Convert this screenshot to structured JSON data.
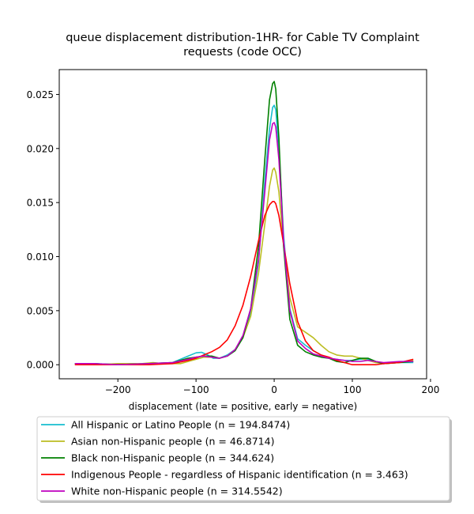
{
  "chart_data": {
    "type": "line",
    "title": [
      "queue displacement distribution-1HR-  for Cable TV Complaint",
      "requests (code OCC)"
    ],
    "xlabel": "displacement (late = positive, early = negative)",
    "ylabel": "",
    "xlim": [
      -275,
      195
    ],
    "ylim": [
      -0.0013,
      0.0273
    ],
    "x_ticks": [
      -200,
      -100,
      0,
      100,
      200
    ],
    "x_tick_labels": [
      "−200",
      "−100",
      "0",
      "100",
      "200"
    ],
    "y_ticks": [
      0.0,
      0.005,
      0.01,
      0.015,
      0.02,
      0.025
    ],
    "y_tick_labels": [
      "0.000",
      "0.005",
      "0.010",
      "0.015",
      "0.020",
      "0.025"
    ],
    "grid": false,
    "legend_placement": "below",
    "series": [
      {
        "name": "All Hispanic or Latino People (n = 194.8474)",
        "color": "#17becf",
        "x": [
          -255,
          -230,
          -200,
          -160,
          -130,
          -110,
          -100,
          -93,
          -85,
          -78,
          -70,
          -60,
          -50,
          -40,
          -30,
          -20,
          -12,
          -6,
          -2,
          0,
          2,
          6,
          12,
          20,
          30,
          40,
          50,
          60,
          70,
          80,
          90,
          100,
          110,
          120,
          130,
          140,
          160,
          178
        ],
        "y": [
          0.0001,
          0.0001,
          0.0,
          0.0001,
          0.0002,
          0.0008,
          0.0011,
          0.00115,
          0.0009,
          0.0006,
          0.0006,
          0.0009,
          0.0014,
          0.0026,
          0.0048,
          0.0095,
          0.017,
          0.0218,
          0.0238,
          0.024,
          0.0236,
          0.02,
          0.012,
          0.0052,
          0.0024,
          0.0018,
          0.0013,
          0.0009,
          0.0006,
          0.0005,
          0.0004,
          0.0004,
          0.0005,
          0.0005,
          0.0002,
          0.0001,
          0.0002,
          0.0002
        ]
      },
      {
        "name": "Asian non-Hispanic people (n = 46.8714)",
        "color": "#bcbd22",
        "x": [
          -255,
          -230,
          -200,
          -170,
          -155,
          -140,
          -120,
          -100,
          -90,
          -80,
          -70,
          -60,
          -50,
          -40,
          -30,
          -20,
          -12,
          -6,
          -2,
          0,
          2,
          6,
          12,
          20,
          30,
          40,
          50,
          60,
          70,
          80,
          90,
          100,
          110,
          120,
          130,
          140,
          160,
          178
        ],
        "y": [
          0.0,
          0.0,
          0.0001,
          0.0001,
          0.0002,
          0.0001,
          0.0001,
          0.0005,
          0.0007,
          0.0007,
          0.0006,
          0.0008,
          0.0014,
          0.0025,
          0.0045,
          0.0085,
          0.013,
          0.0165,
          0.018,
          0.0182,
          0.0178,
          0.016,
          0.011,
          0.0062,
          0.0035,
          0.003,
          0.0025,
          0.0018,
          0.0012,
          0.0009,
          0.0008,
          0.0008,
          0.0006,
          0.0004,
          0.0002,
          0.0001,
          0.0002,
          0.0004
        ]
      },
      {
        "name": "Black non-Hispanic people (n = 344.624)",
        "color": "#008000",
        "x": [
          -255,
          -230,
          -200,
          -160,
          -130,
          -110,
          -100,
          -90,
          -80,
          -70,
          -60,
          -50,
          -40,
          -30,
          -20,
          -12,
          -6,
          -2,
          0,
          2,
          6,
          12,
          20,
          30,
          40,
          50,
          60,
          70,
          80,
          90,
          100,
          110,
          120,
          130,
          140,
          160,
          178
        ],
        "y": [
          0.0001,
          0.0001,
          0.0,
          0.0001,
          0.0002,
          0.0006,
          0.0007,
          0.0008,
          0.0008,
          0.0006,
          0.0008,
          0.0013,
          0.0025,
          0.0052,
          0.011,
          0.019,
          0.0245,
          0.026,
          0.0262,
          0.0255,
          0.021,
          0.011,
          0.0042,
          0.0018,
          0.0012,
          0.0009,
          0.0007,
          0.0006,
          0.0003,
          0.0002,
          0.0004,
          0.0006,
          0.0006,
          0.0003,
          0.0001,
          0.0002,
          0.0003
        ]
      },
      {
        "name": "Indigenous People - regardless of Hispanic identification (n = 3.463)",
        "color": "#ff0000",
        "x": [
          -255,
          -230,
          -200,
          -160,
          -130,
          -110,
          -100,
          -90,
          -80,
          -70,
          -60,
          -50,
          -40,
          -30,
          -20,
          -12,
          -6,
          -2,
          0,
          2,
          6,
          12,
          20,
          30,
          40,
          50,
          60,
          70,
          80,
          90,
          100,
          110,
          120,
          130,
          140,
          160,
          178
        ],
        "y": [
          0.0,
          0.0,
          0.0,
          0.0,
          0.0001,
          0.0004,
          0.0006,
          0.0009,
          0.0012,
          0.0016,
          0.0023,
          0.0036,
          0.0055,
          0.0082,
          0.0115,
          0.0138,
          0.0148,
          0.0151,
          0.0151,
          0.0149,
          0.0138,
          0.0112,
          0.0075,
          0.004,
          0.0022,
          0.0013,
          0.0009,
          0.0007,
          0.0004,
          0.0002,
          0.0,
          0.0,
          0.0,
          0.0,
          0.0001,
          0.0002,
          0.0005
        ]
      },
      {
        "name": "White non-Hispanic people (n = 314.5542)",
        "color": "#bf00bf",
        "x": [
          -255,
          -230,
          -200,
          -160,
          -130,
          -110,
          -100,
          -90,
          -80,
          -70,
          -60,
          -50,
          -40,
          -30,
          -20,
          -12,
          -6,
          -2,
          0,
          2,
          6,
          12,
          20,
          30,
          40,
          50,
          60,
          70,
          80,
          90,
          100,
          110,
          120,
          130,
          140,
          160,
          178
        ],
        "y": [
          0.0001,
          0.0001,
          0.0,
          0.0001,
          0.0002,
          0.0005,
          0.0007,
          0.0008,
          0.0007,
          0.0006,
          0.0008,
          0.0014,
          0.0027,
          0.0052,
          0.0098,
          0.016,
          0.0208,
          0.0223,
          0.0224,
          0.022,
          0.019,
          0.0115,
          0.005,
          0.0022,
          0.0015,
          0.001,
          0.0008,
          0.0006,
          0.0005,
          0.0004,
          0.0003,
          0.0003,
          0.0004,
          0.0003,
          0.0002,
          0.0003,
          0.0003
        ]
      }
    ]
  }
}
